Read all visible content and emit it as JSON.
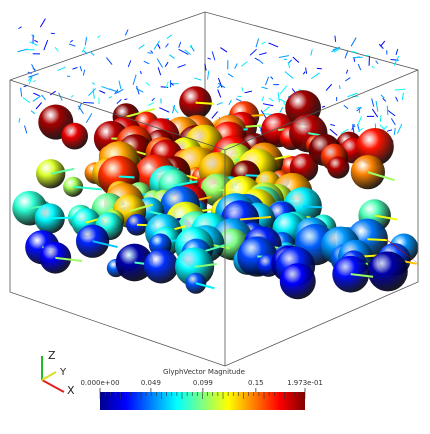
{
  "axes_triad": {
    "z": "Z",
    "y": "Y",
    "x": "X"
  },
  "colorbar": {
    "title": "GlyphVector Magnitude",
    "range": [
      0,
      0.1973
    ],
    "ticks": [
      {
        "value": 0,
        "label": "0.000e+00"
      },
      0.049,
      0.099,
      0.15,
      {
        "value": 0.1973,
        "label": "1.973e-01"
      }
    ]
  }
}
